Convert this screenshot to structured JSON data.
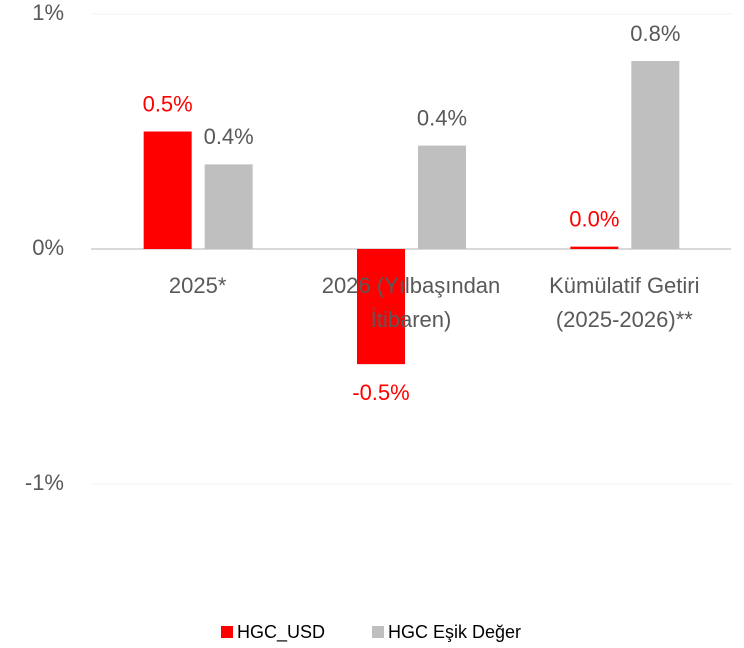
{
  "chart_data": {
    "type": "bar",
    "categories": [
      "2025*",
      "2026 (Yılbaşından İtibaren)",
      "Kümülatif Getiri (2025-2026)**"
    ],
    "series": [
      {
        "name": "HGC_USD",
        "color": "#ff0000",
        "values": [
          0.5,
          -0.49,
          0.01
        ],
        "value_labels": [
          "0.5%",
          "-0.5%",
          "0.0%"
        ]
      },
      {
        "name": "HGC Eşik Değer",
        "color": "#bfbfbf",
        "values": [
          0.36,
          0.44,
          0.8
        ],
        "value_labels": [
          "0.4%",
          "0.4%",
          "0.8%"
        ]
      }
    ],
    "ylim": [
      -1,
      1
    ],
    "yticks": [
      {
        "value": -1,
        "label": "-1%"
      },
      {
        "value": 0,
        "label": "0%"
      },
      {
        "value": 1,
        "label": "1%"
      }
    ],
    "grid": true,
    "legend": "bottom"
  }
}
